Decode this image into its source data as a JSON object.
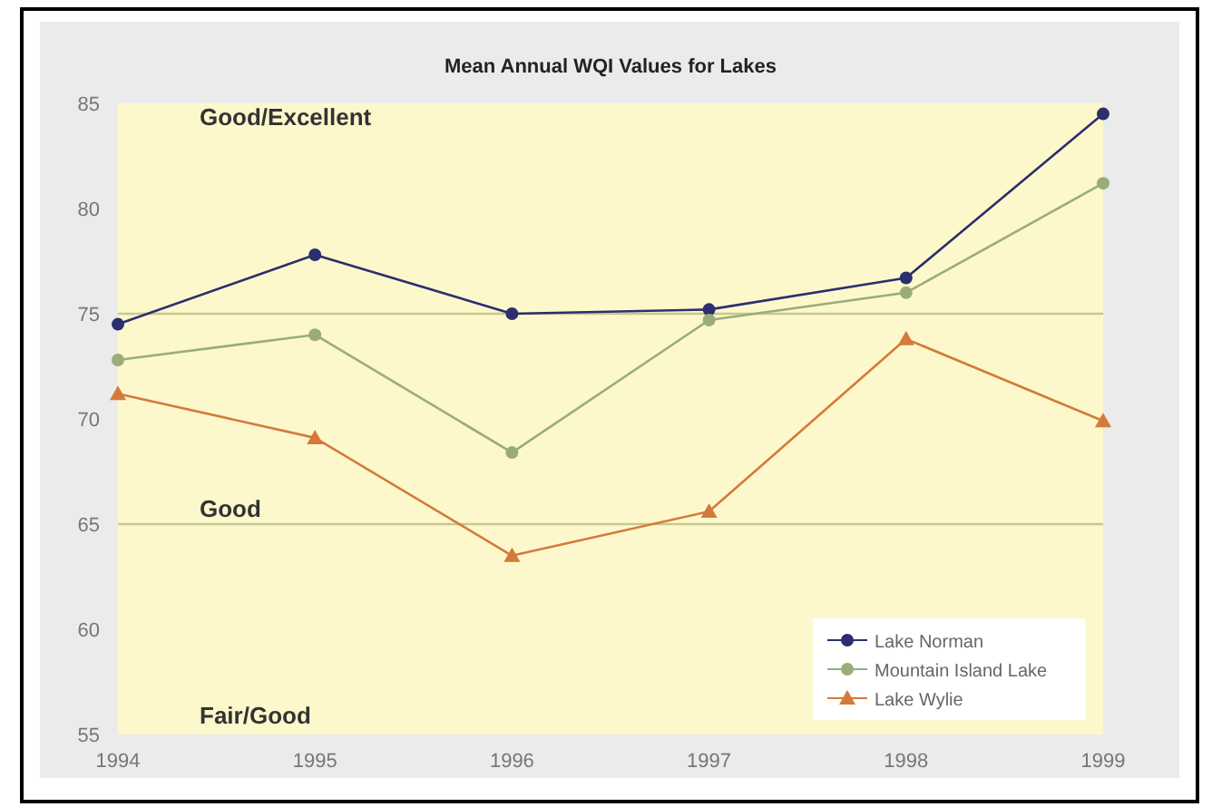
{
  "chart_data": {
    "type": "line",
    "title": "Mean Annual WQI Values for Lakes",
    "categories": [
      "1994",
      "1995",
      "1996",
      "1997",
      "1998",
      "1999"
    ],
    "series": [
      {
        "name": "Lake Norman",
        "color": "#2b2f6e",
        "marker": "circle",
        "values": [
          74.5,
          77.8,
          75,
          75.2,
          76.7,
          84.5
        ]
      },
      {
        "name": "Mountain Island Lake",
        "color": "#9aac7a",
        "marker": "circle",
        "values": [
          72.8,
          74,
          68.4,
          74.7,
          76,
          81.2
        ]
      },
      {
        "name": "Lake Wylie",
        "color": "#d47a3c",
        "marker": "triangle",
        "values": [
          71.2,
          69.1,
          63.5,
          65.6,
          73.8,
          69.9
        ]
      }
    ],
    "ylim": [
      55,
      85
    ],
    "yticks": [
      55,
      60,
      65,
      70,
      75,
      80,
      85
    ],
    "ref_lines": [
      {
        "axis": "y",
        "value": 75,
        "color": "#c8c890"
      },
      {
        "axis": "y",
        "value": 65,
        "color": "#c8c890"
      }
    ],
    "bands": [
      {
        "axis": "y",
        "from": 75,
        "to": 85,
        "label": "Good/Excellent",
        "color": "#fdf8cc"
      },
      {
        "axis": "y",
        "from": 65,
        "to": 75,
        "label": "Good",
        "color": "#fdf8cc"
      },
      {
        "axis": "y",
        "from": 55,
        "to": 65,
        "label": "Fair/Good",
        "color": "#fdf8cc"
      }
    ],
    "grid": false,
    "legend": "bottom right",
    "line_style": "solid"
  }
}
